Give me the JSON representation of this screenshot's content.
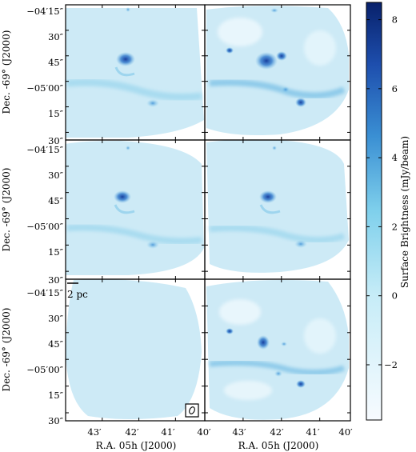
{
  "figure": {
    "x_ticks": [
      "43′",
      "42′",
      "41′",
      "40′"
    ],
    "y_ticks": [
      "−04′15″",
      "30″",
      "45″",
      "−05′00″",
      "15″",
      "30″"
    ],
    "x_label": "R.A. 05h (J2000)",
    "y_label": "Dec. -69° (J2000)",
    "scale_bar_label": "2 pc",
    "colorbar": {
      "label": "Surface Brightness (mJy/beam)",
      "ticks": [
        "8",
        "6",
        "4",
        "2",
        "0",
        "−2"
      ],
      "range": [
        -3.6,
        8.5
      ],
      "colors": [
        "#f7fbff",
        "#c6ecf7",
        "#5cbfe2",
        "#1e5bb8",
        "#08216b"
      ]
    },
    "panel_fill": "#cdeaf6",
    "blob_color": "#2163bf"
  }
}
